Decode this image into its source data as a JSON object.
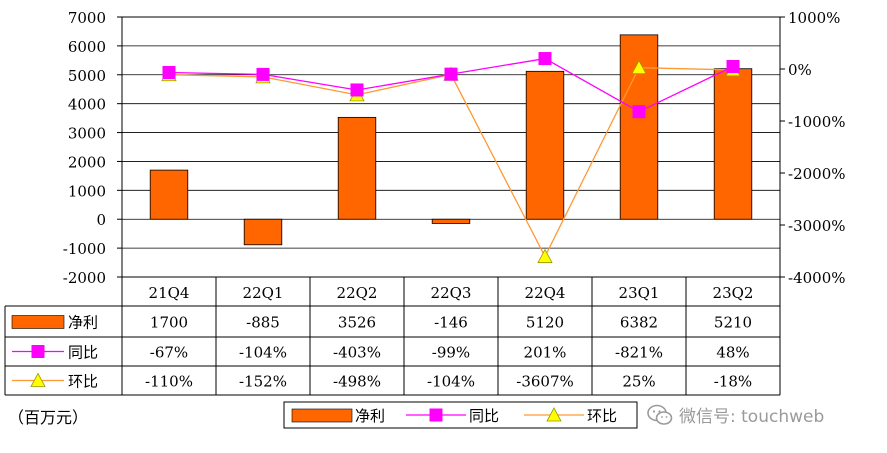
{
  "unit_label": "（百万元）",
  "watermark": "微信号: touchweb",
  "chart_data": {
    "type": "bar",
    "categories": [
      "21Q4",
      "22Q1",
      "22Q2",
      "22Q3",
      "22Q4",
      "23Q1",
      "23Q2"
    ],
    "series": [
      {
        "name": "净利",
        "type": "bar",
        "axis": "left",
        "color": "#ff6600",
        "values": [
          1700,
          -885,
          3526,
          -146,
          5120,
          6382,
          5210
        ],
        "labels": [
          "1700",
          "-885",
          "3526",
          "-146",
          "5120",
          "6382",
          "5210"
        ]
      },
      {
        "name": "同比",
        "type": "line",
        "axis": "right",
        "color": "#ff00ff",
        "marker": "square",
        "values": [
          -67,
          -104,
          -403,
          -99,
          201,
          -821,
          48
        ],
        "labels": [
          "-67%",
          "-104%",
          "-403%",
          "-99%",
          "201%",
          "-821%",
          "48%"
        ]
      },
      {
        "name": "环比",
        "type": "line",
        "axis": "right",
        "color": "#ff9933",
        "marker": "triangle",
        "values": [
          -110,
          -152,
          -498,
          -104,
          -3607,
          25,
          -18
        ],
        "labels": [
          "-110%",
          "-152%",
          "-498%",
          "-104%",
          "-3607%",
          "25%",
          "-18%"
        ]
      }
    ],
    "y_left": {
      "min": -2000,
      "max": 7000,
      "step": 1000,
      "ticks": [
        "7000",
        "6000",
        "5000",
        "4000",
        "3000",
        "2000",
        "1000",
        "0",
        "-1000",
        "-2000"
      ]
    },
    "y_right": {
      "min": -4000,
      "max": 1000,
      "step": 1000,
      "ticks": [
        "1000%",
        "0%",
        "-1000%",
        "-2000%",
        "-3000%",
        "-4000%"
      ]
    },
    "grid": true,
    "legend_position": "bottom",
    "data_table": true
  }
}
